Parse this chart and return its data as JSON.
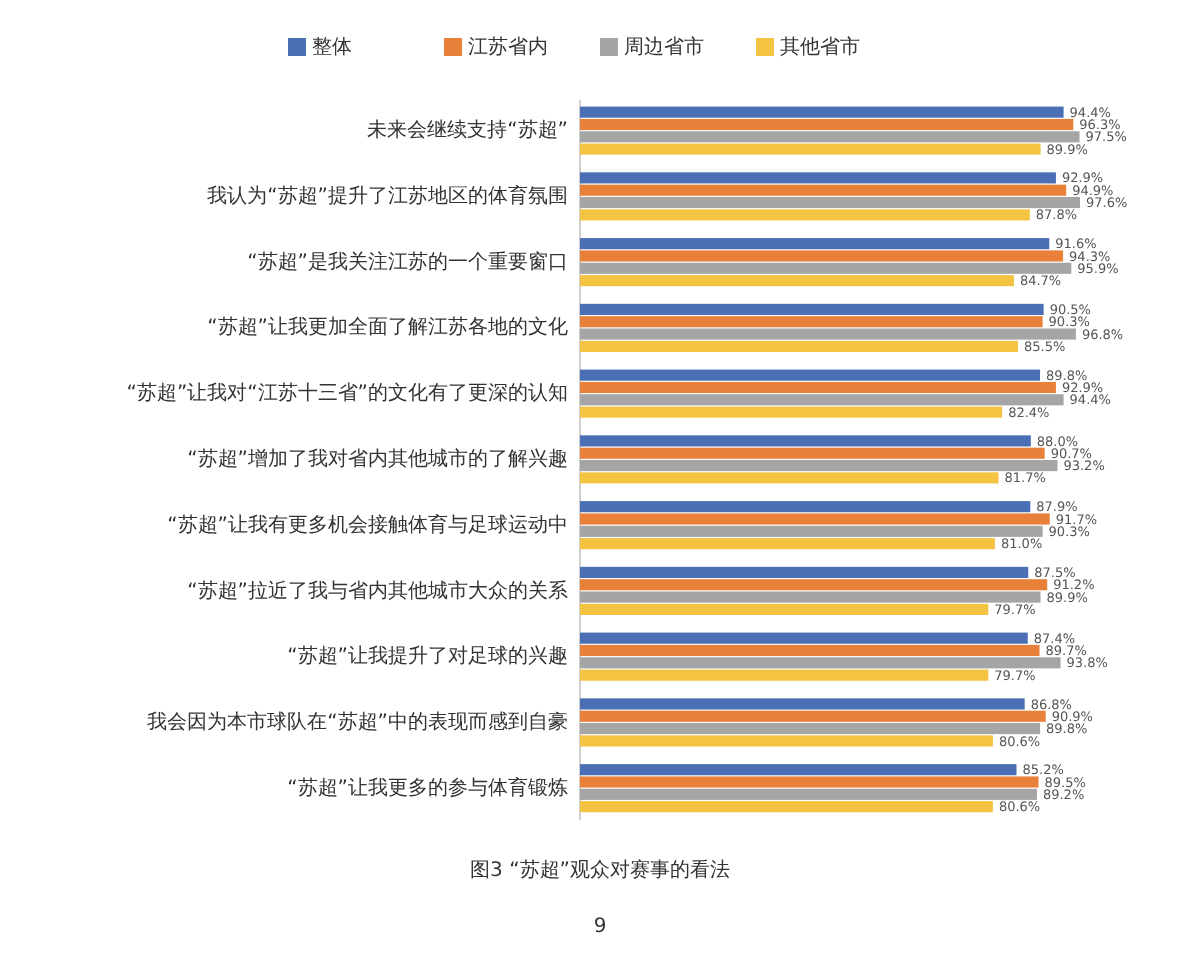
{
  "chart_data": {
    "type": "bar",
    "orientation": "horizontal",
    "legend": "top",
    "categories": [
      "未来会继续支持“苏超”",
      "我认为“苏超”提升了江苏地区的体育氛围",
      "“苏超”是我关注江苏的一个重要窗口",
      "“苏超”让我更加全面了解江苏各地的文化",
      "“苏超”让我对“江苏十三省”的文化有了更深的认知",
      "“苏超”增加了我对省内其他城市的了解兴趣",
      "“苏超”让我有更多机会接触体育与足球运动中",
      "“苏超”拉近了我与省内其他城市大众的关系",
      "“苏超”让我提升了对足球的兴趣",
      "我会因为本市球队在“苏超”中的表现而感到自豪",
      "“苏超”让我更多的参与体育锻炼"
    ],
    "series": [
      {
        "name": "整体",
        "color": "#4a6fb5",
        "values": [
          94.4,
          92.9,
          91.6,
          90.5,
          89.8,
          88.0,
          87.9,
          87.5,
          87.4,
          86.8,
          85.2
        ],
        "value_labels": [
          "94.4%",
          "92.9%",
          "91.6%",
          "90.5%",
          "89.8%",
          "88.0%",
          "87.9%",
          "87.5%",
          "87.4%",
          "86.8%",
          "85.2%"
        ]
      },
      {
        "name": "江苏省内",
        "color": "#e8803a",
        "values": [
          96.3,
          94.9,
          94.3,
          90.3,
          92.9,
          90.7,
          91.7,
          91.2,
          89.7,
          90.9,
          89.5
        ],
        "value_labels": [
          "96.3%",
          "94.9%",
          "94.3%",
          "90.3%",
          "92.9%",
          "90.7%",
          "91.7%",
          "91.2%",
          "89.7%",
          "90.9%",
          "89.5%"
        ]
      },
      {
        "name": "周边省市",
        "color": "#a5a5a5",
        "values": [
          97.5,
          97.6,
          95.9,
          96.8,
          94.4,
          93.2,
          90.3,
          89.9,
          93.8,
          89.8,
          89.2
        ],
        "value_labels": [
          "97.5%",
          "97.6%",
          "95.9%",
          "96.8%",
          "94.4%",
          "93.2%",
          "90.3%",
          "89.9%",
          "93.8%",
          "89.8%",
          "89.2%"
        ]
      },
      {
        "name": "其他省市",
        "color": "#f5c342",
        "values": [
          89.9,
          87.8,
          84.7,
          85.5,
          82.4,
          81.7,
          81.0,
          79.7,
          79.7,
          80.6,
          80.6
        ],
        "value_labels": [
          "89.9%",
          "87.8%",
          "84.7%",
          "85.5%",
          "82.4%",
          "81.7%",
          "81.0%",
          "79.7%",
          "79.7%",
          "80.6%",
          "80.6%"
        ]
      }
    ],
    "annotations": [
      "图3 “苏超”观众对赛事的看法",
      "9"
    ]
  }
}
